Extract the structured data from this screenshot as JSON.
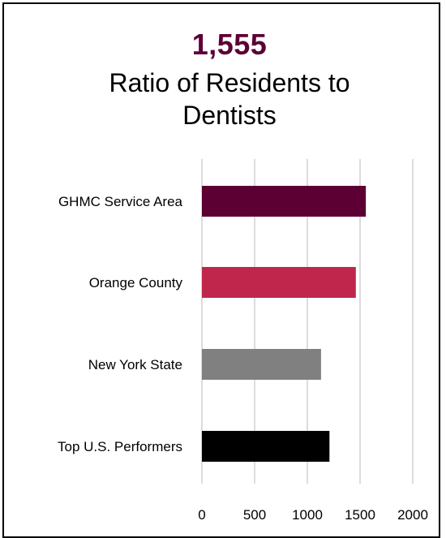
{
  "header": {
    "headline_value": "1,555",
    "title": "Ratio of Residents to Dentists"
  },
  "colors": {
    "headline": "#5c0034",
    "gridline": "#d0d0d0"
  },
  "chart_data": {
    "type": "bar",
    "orientation": "horizontal",
    "title": "Ratio of Residents to Dentists",
    "categories": [
      "GHMC Service Area",
      "Orange County",
      "New York State",
      "Top U.S. Performers"
    ],
    "values": [
      1555,
      1460,
      1130,
      1210
    ],
    "bar_colors": [
      "#5c0034",
      "#c0264b",
      "#808080",
      "#000000"
    ],
    "xlim": [
      0,
      2000
    ],
    "x_ticks": [
      "0",
      "500",
      "1000",
      "1500",
      "2000"
    ],
    "xlabel": "",
    "ylabel": "",
    "grid": true,
    "legend": "none"
  }
}
